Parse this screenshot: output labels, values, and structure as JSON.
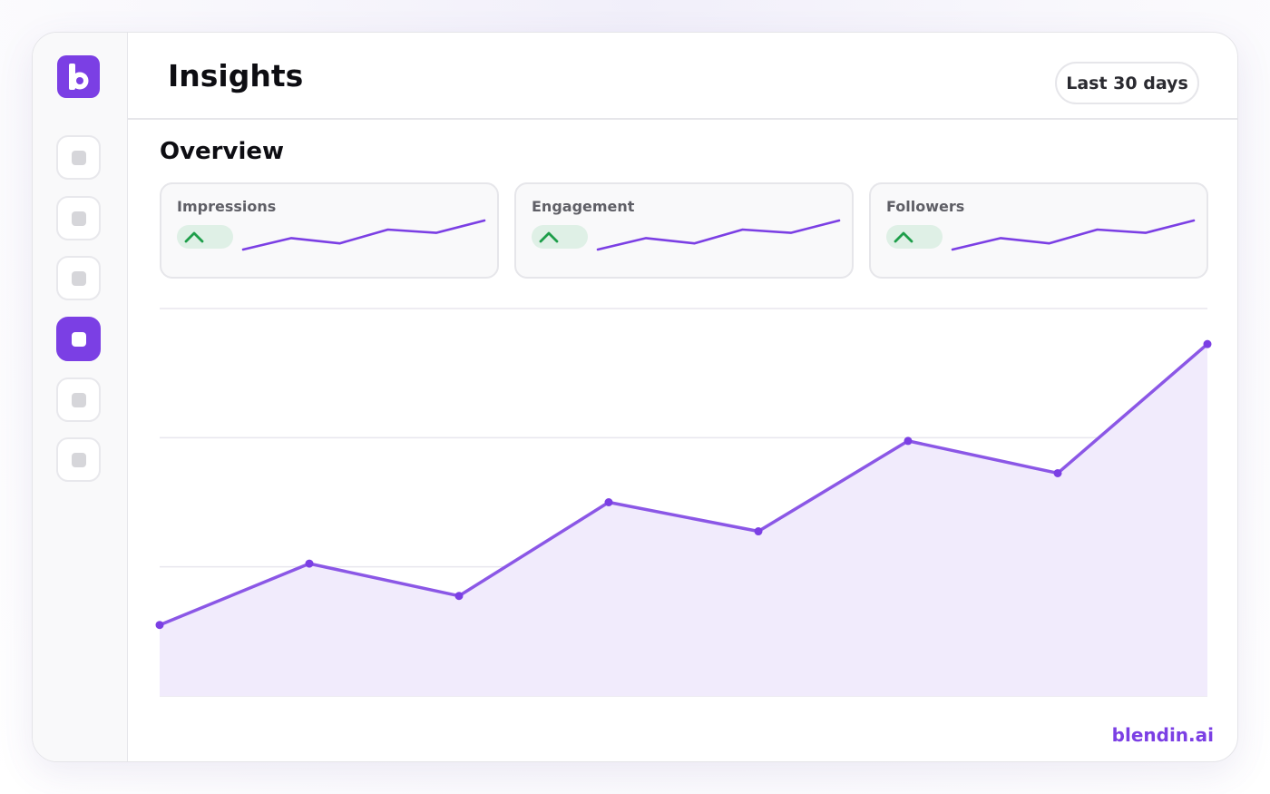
{
  "app": {
    "logo_icon": "blendin-logo-icon",
    "accent_color": "#7b3fe4"
  },
  "sidebar": {
    "items": [
      {
        "icon": "nav-square-icon",
        "active": false
      },
      {
        "icon": "nav-square-icon",
        "active": false
      },
      {
        "icon": "nav-square-icon",
        "active": false
      },
      {
        "icon": "nav-square-icon",
        "active": true
      },
      {
        "icon": "nav-square-icon",
        "active": false
      },
      {
        "icon": "nav-square-icon",
        "active": false
      }
    ]
  },
  "header": {
    "title": "Insights",
    "date_range": "Last 30 days"
  },
  "overview": {
    "title": "Overview",
    "cards": [
      {
        "label": "Impressions",
        "trend_icon": "chevron-up-icon",
        "trend_color": "#1e9e4a"
      },
      {
        "label": "Engagement",
        "trend_icon": "chevron-up-icon",
        "trend_color": "#1e9e4a"
      },
      {
        "label": "Followers",
        "trend_icon": "chevron-up-icon",
        "trend_color": "#1e9e4a"
      }
    ]
  },
  "sparkline": {
    "values": [
      0,
      2.4,
      1.3,
      4.2,
      3.5,
      6.1
    ]
  },
  "chart_data": {
    "type": "area",
    "x": [
      1,
      2,
      3,
      4,
      5,
      6,
      7,
      8
    ],
    "values": [
      1.1,
      2.05,
      1.55,
      3.0,
      2.55,
      3.95,
      3.45,
      5.45
    ],
    "ylim": [
      0,
      6
    ],
    "grid": true,
    "line_color": "#8b57e6",
    "fill_color": "#f1ebfc"
  },
  "footer": {
    "brand": "blendin.ai"
  }
}
